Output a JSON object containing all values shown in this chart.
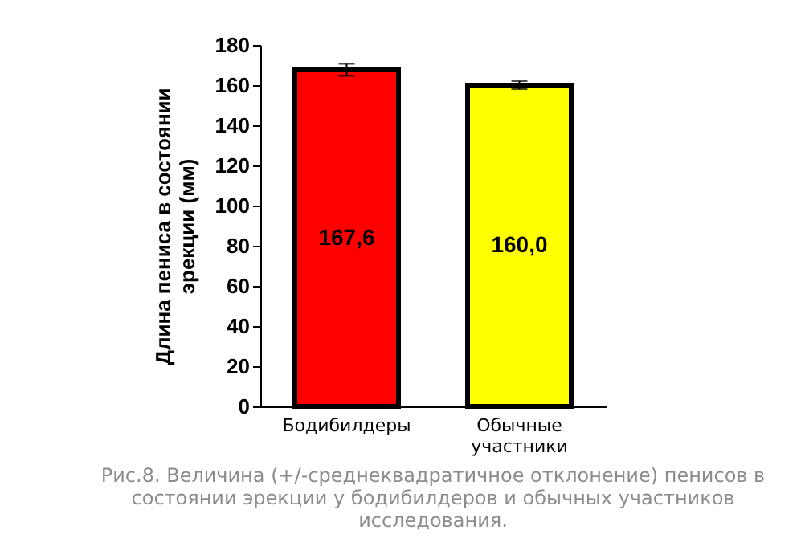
{
  "chart_data": {
    "type": "bar",
    "categories": [
      "Бодибилдеры",
      "Обычные\nучастники"
    ],
    "values": [
      167.6,
      160.0
    ],
    "value_labels": [
      "167,6",
      "160,0"
    ],
    "errors": [
      3,
      2
    ],
    "colors": [
      "#ff0000",
      "#ffff00"
    ],
    "ylabel": "Длина пениса в состоянии\nэрекции (мм)",
    "ylim": [
      0,
      180
    ],
    "yticks": [
      0,
      20,
      40,
      60,
      80,
      100,
      120,
      140,
      160,
      180
    ],
    "grid": false,
    "annotations": [
      "Рис.8. Величина (+/-среднеквадратичное отклонение) пенисов в\nсостоянии эрекции у бодибилдеров и обычных участников\nисследования."
    ]
  }
}
